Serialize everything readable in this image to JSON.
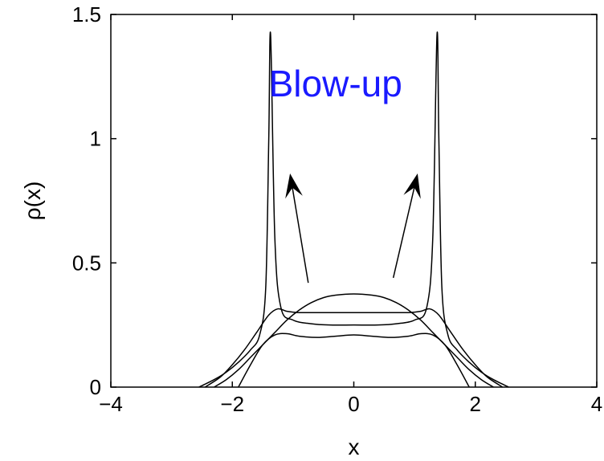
{
  "chart_data": {
    "type": "line",
    "title": "",
    "xlabel": "x",
    "ylabel": "ρ(x)",
    "xlim": [
      -4,
      4
    ],
    "ylim": [
      0,
      1.5
    ],
    "xticks": [
      -4,
      -2,
      0,
      2,
      4
    ],
    "xtick_labels": [
      "−4",
      "−2",
      "0",
      "2",
      "4"
    ],
    "yticks": [
      0,
      0.5,
      1,
      1.5
    ],
    "ytick_labels": [
      "0",
      "0.5",
      "1",
      "1.5"
    ],
    "grid": false,
    "legend": "none",
    "annotation": {
      "text": "Blow-up",
      "color": "#1a1aff",
      "x": -1.4,
      "y": 1.17
    },
    "arrows": [
      {
        "from": [
          -0.75,
          0.42
        ],
        "to": [
          -1.05,
          0.86
        ]
      },
      {
        "from": [
          0.65,
          0.44
        ],
        "to": [
          1.05,
          0.86
        ]
      }
    ],
    "line_color": "#000000",
    "series": [
      {
        "x": [
          -2.3,
          -2.1,
          -1.9,
          -1.7,
          -1.5,
          -1.3,
          -1.1,
          -0.9,
          -0.7,
          -0.5,
          -0.3,
          0,
          0.3,
          0.5,
          0.7,
          0.9,
          1.1,
          1.3,
          1.5,
          1.7,
          1.9,
          2.1,
          2.3
        ],
        "y": [
          0.0,
          0.03,
          0.07,
          0.12,
          0.17,
          0.22,
          0.27,
          0.31,
          0.34,
          0.36,
          0.37,
          0.375,
          0.37,
          0.36,
          0.34,
          0.31,
          0.27,
          0.22,
          0.17,
          0.12,
          0.07,
          0.03,
          0.0
        ]
      },
      {
        "x": [
          -2.45,
          -2.2,
          -2.0,
          -1.8,
          -1.6,
          -1.4,
          -1.25,
          -1.1,
          -0.9,
          -0.6,
          -0.3,
          0,
          0.3,
          0.6,
          0.9,
          1.1,
          1.25,
          1.4,
          1.6,
          1.8,
          2.0,
          2.2,
          2.45
        ],
        "y": [
          0.0,
          0.04,
          0.09,
          0.15,
          0.22,
          0.29,
          0.315,
          0.305,
          0.3,
          0.3,
          0.3,
          0.3,
          0.3,
          0.3,
          0.3,
          0.305,
          0.315,
          0.29,
          0.22,
          0.15,
          0.09,
          0.04,
          0.0
        ]
      },
      {
        "x": [
          -2.55,
          -2.3,
          -2.1,
          -1.9,
          -1.7,
          -1.55,
          -1.45,
          -1.4,
          -1.37,
          -1.3,
          -1.2,
          -1.0,
          -0.7,
          -0.4,
          0,
          0.4,
          0.7,
          1.0,
          1.2,
          1.3,
          1.37,
          1.4,
          1.45,
          1.55,
          1.7,
          1.9,
          2.1,
          2.3,
          2.55
        ],
        "y": [
          0.0,
          0.03,
          0.06,
          0.1,
          0.15,
          0.21,
          0.4,
          1.0,
          1.42,
          0.6,
          0.32,
          0.27,
          0.255,
          0.25,
          0.25,
          0.25,
          0.255,
          0.27,
          0.32,
          0.6,
          1.42,
          1.0,
          0.4,
          0.21,
          0.15,
          0.1,
          0.06,
          0.03,
          0.0
        ]
      },
      {
        "x": [
          -1.9,
          -1.7,
          -1.5,
          -1.3,
          -1.1,
          -0.9,
          -0.6,
          -0.3,
          0,
          0.3,
          0.6,
          0.9,
          1.1,
          1.3,
          1.5,
          1.7,
          1.9
        ],
        "y": [
          0.0,
          0.09,
          0.17,
          0.21,
          0.215,
          0.205,
          0.2,
          0.205,
          0.21,
          0.205,
          0.2,
          0.205,
          0.215,
          0.21,
          0.17,
          0.09,
          0.0
        ]
      }
    ]
  }
}
